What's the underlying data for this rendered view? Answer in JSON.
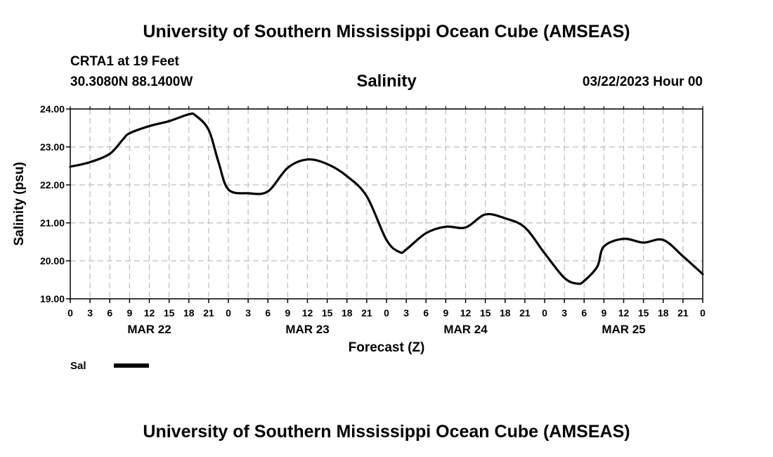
{
  "header": {
    "title": "University of Southern Mississippi Ocean Cube (AMSEAS)",
    "station": "CRTA1 at 19 Feet",
    "coordinates": "30.3080N  88.1400W",
    "datetime": "03/22/2023 Hour 00"
  },
  "footer": {
    "title": "University of Southern Mississippi Ocean Cube (AMSEAS)"
  },
  "chart_data": {
    "type": "line",
    "title": "Salinity",
    "xlabel": "Forecast (Z)",
    "ylabel": "Salinity (psu)",
    "xlim": [
      0,
      96
    ],
    "ylim": [
      19.0,
      24.0
    ],
    "grid": true,
    "y_ticks": [
      "19.00",
      "20.00",
      "21.00",
      "22.00",
      "23.00",
      "24.00"
    ],
    "x_tick_labels": [
      "0",
      "3",
      "6",
      "9",
      "12",
      "15",
      "18",
      "21",
      "0",
      "3",
      "6",
      "9",
      "12",
      "15",
      "18",
      "21",
      "0",
      "3",
      "6",
      "9",
      "12",
      "15",
      "18",
      "21",
      "0",
      "3",
      "6",
      "9",
      "12",
      "15",
      "18",
      "21",
      "0"
    ],
    "day_labels": [
      {
        "label": "MAR 22",
        "hour": 12
      },
      {
        "label": "MAR 23",
        "hour": 36
      },
      {
        "label": "MAR 24",
        "hour": 60
      },
      {
        "label": "MAR 25",
        "hour": 84
      }
    ],
    "series": [
      {
        "name": "Sal",
        "color": "#000000",
        "x": [
          0,
          3,
          6,
          8,
          9,
          12,
          15,
          18,
          19,
          21,
          22.5,
          24,
          27,
          30,
          33,
          36,
          39,
          42,
          45,
          48,
          50,
          51,
          54,
          57,
          60,
          63,
          66,
          69,
          72,
          75,
          77,
          78,
          80,
          81,
          84,
          87,
          90,
          93,
          96
        ],
        "values": [
          22.48,
          22.6,
          22.82,
          23.2,
          23.36,
          23.55,
          23.68,
          23.86,
          23.83,
          23.45,
          22.6,
          21.88,
          21.78,
          21.83,
          22.45,
          22.67,
          22.55,
          22.23,
          21.7,
          20.55,
          20.23,
          20.3,
          20.73,
          20.9,
          20.88,
          21.22,
          21.12,
          20.88,
          20.2,
          19.55,
          19.4,
          19.47,
          19.85,
          20.38,
          20.58,
          20.48,
          20.55,
          20.12,
          19.65
        ]
      }
    ],
    "legend": {
      "position": "bottom-left",
      "entries": [
        "Sal"
      ]
    }
  }
}
